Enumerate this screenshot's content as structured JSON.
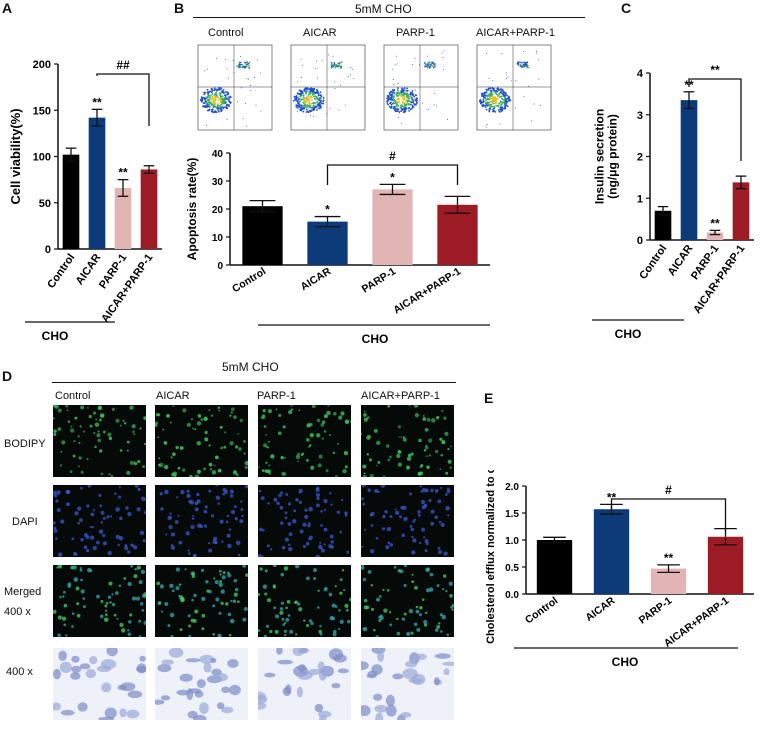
{
  "panels": {
    "A": "A",
    "B": "B",
    "C": "C",
    "D": "D",
    "E": "E"
  },
  "headers": {
    "b_condition": "5mM CHO",
    "d_condition": "5mM CHO",
    "group_label": "CHO"
  },
  "flow_columns": [
    "Control",
    "AICAR",
    "PARP-1",
    "AICAR+PARP-1"
  ],
  "micro": {
    "columns": [
      "Control",
      "AICAR",
      "PARP-1",
      "AICAR+PARP-1"
    ],
    "rows": [
      "BODIPY",
      "DAPI",
      "Merged\n400 x",
      "400 x"
    ],
    "colors": {
      "bodipy": "#1f5d28",
      "dapi": "#1c2a6a",
      "merged": "#1d5a5a",
      "stain": "#c9d3ea"
    }
  },
  "colors": {
    "control": "#000000",
    "aicar": "#0d3b7a",
    "parp1": "#e2b5b5",
    "combo": "#9c1b24"
  },
  "chart_data": [
    {
      "id": "A",
      "type": "bar",
      "categories": [
        "Control",
        "AICAR",
        "PARP-1",
        "AICAR+PARP-1"
      ],
      "values": [
        102,
        142,
        66,
        86
      ],
      "errors": [
        7,
        9,
        9,
        4
      ],
      "ylabel": "Cell viability(%)",
      "ylim": [
        0,
        200
      ],
      "yticks": [
        0,
        50,
        100,
        150,
        200
      ],
      "annotations": [
        "",
        "**",
        "**",
        ""
      ],
      "bracket": {
        "from": 1,
        "to": 3,
        "label": "##"
      },
      "group_label": "CHO"
    },
    {
      "id": "B",
      "type": "bar",
      "categories": [
        "Control",
        "AICAR",
        "PARP-1",
        "AICAR+PARP-1"
      ],
      "values": [
        21,
        15.5,
        27,
        21.5
      ],
      "errors": [
        2,
        1.8,
        1.8,
        3
      ],
      "ylabel": "Apoptosis rate(%)",
      "ylim": [
        0,
        40
      ],
      "yticks": [
        0,
        10,
        20,
        30,
        40
      ],
      "annotations": [
        "",
        "*",
        "*",
        ""
      ],
      "bracket": {
        "from": 1,
        "to": 3,
        "label": "#"
      },
      "group_label": "CHO"
    },
    {
      "id": "C",
      "type": "bar",
      "categories": [
        "Control",
        "AICAR",
        "PARP-1",
        "AICAR+PARP-1"
      ],
      "values": [
        0.7,
        3.35,
        0.18,
        1.38
      ],
      "errors": [
        0.1,
        0.2,
        0.05,
        0.15
      ],
      "ylabel": "Insulin secretion\n(ng/μg protein)",
      "ylim": [
        0,
        4
      ],
      "yticks": [
        0,
        1,
        2,
        3,
        4
      ],
      "annotations": [
        "",
        "**",
        "**",
        ""
      ],
      "bracket": {
        "from": 1,
        "to": 3,
        "label": "**"
      },
      "group_label": "CHO"
    },
    {
      "id": "E",
      "type": "bar",
      "categories": [
        "Control",
        "AICAR",
        "PARP-1",
        "AICAR+PARP-1"
      ],
      "values": [
        1.0,
        1.57,
        0.47,
        1.06
      ],
      "errors": [
        0.05,
        0.09,
        0.07,
        0.15
      ],
      "ylabel": "Cholesterol efflux normalized to control",
      "ylim": [
        0,
        2.0
      ],
      "yticks": [
        0.0,
        0.5,
        1.0,
        1.5,
        2.0
      ],
      "annotations": [
        "",
        "**",
        "**",
        ""
      ],
      "bracket": {
        "from": 1,
        "to": 3,
        "label": "#"
      },
      "group_label": "CHO"
    }
  ]
}
